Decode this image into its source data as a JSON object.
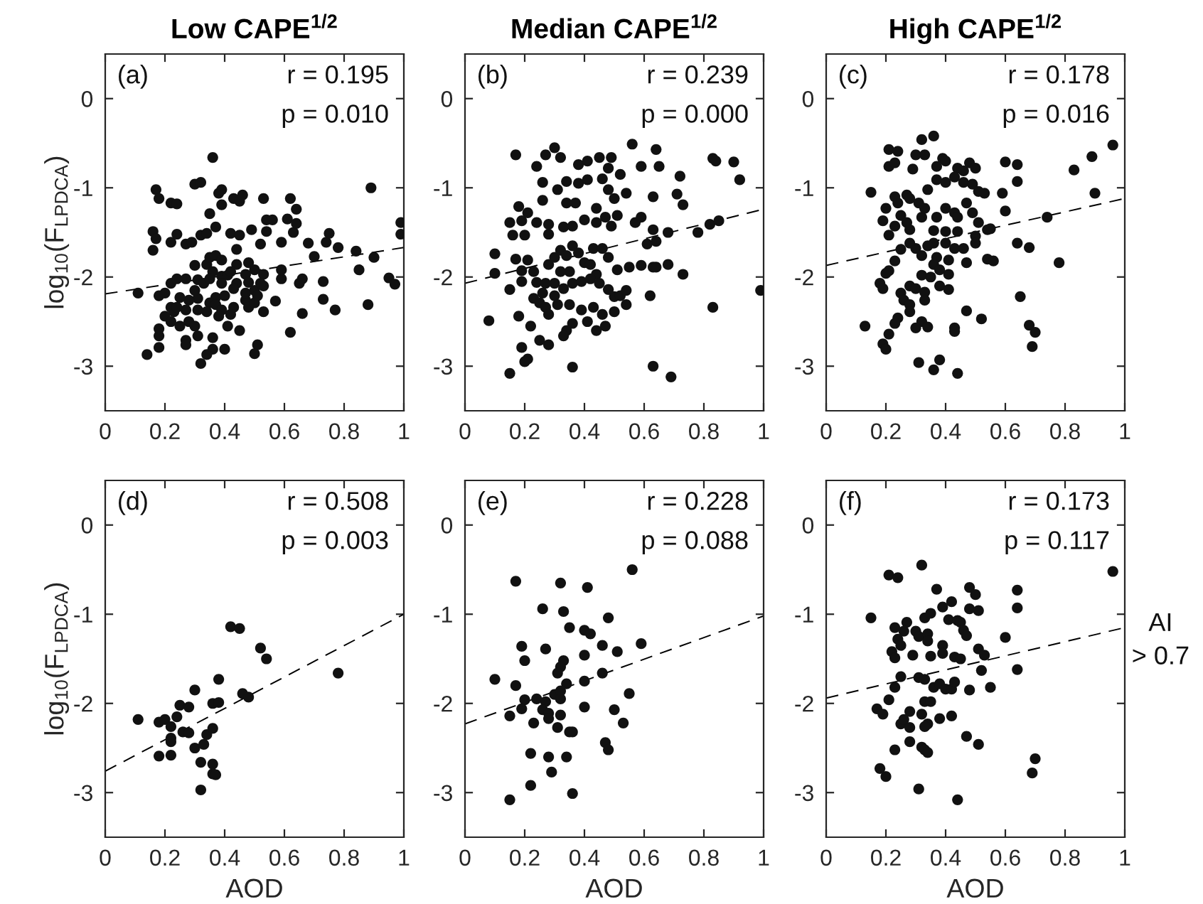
{
  "chart_data": [
    {
      "type": "scatter",
      "title": "Low CAPE$^{1/2}$",
      "ylabel": "log$_{10}$(F$_{LPDCA}$)",
      "annotations": [
        "(a)",
        "r = 0.195",
        "p = 0.010"
      ],
      "xlim": [
        0,
        1
      ],
      "ylim": [
        -3.5,
        0.5
      ],
      "xticks": [
        0,
        0.2,
        0.4,
        0.6,
        0.8,
        1
      ],
      "yticks": [
        {
          "value": -3,
          "label": "-3"
        },
        {
          "value": -2,
          "label": "-2"
        },
        {
          "value": -1,
          "label": "-1"
        },
        0
      ],
      "marker": "circle",
      "legend": false,
      "grid": false,
      "series": [
        {
          "color": "#111111",
          "x": [
            0.36,
            0.17,
            0.18,
            0.22,
            0.24,
            0.3,
            0.32,
            0.38,
            0.39,
            0.39,
            0.43,
            0.45,
            0.46,
            0.53,
            0.62,
            0.64,
            0.89,
            0.99,
            0.99,
            0.16,
            0.17,
            0.16,
            0.22,
            0.24,
            0.27,
            0.29,
            0.32,
            0.34,
            0.35,
            0.37,
            0.42,
            0.45,
            0.49,
            0.54,
            0.56,
            0.54,
            0.52,
            0.61,
            0.63,
            0.64,
            0.59,
            0.68,
            0.74,
            0.75,
            0.78,
            0.7,
            0.84,
            0.9,
            0.85,
            0.95,
            0.97,
            0.88,
            0.77,
            0.73,
            0.73,
            0.66,
            0.65,
            0.66,
            0.62,
            0.59,
            0.59,
            0.53,
            0.53,
            0.53,
            0.57,
            0.51,
            0.5,
            0.45,
            0.41,
            0.4,
            0.36,
            0.36,
            0.32,
            0.34,
            0.27,
            0.27,
            0.31,
            0.14,
            0.18,
            0.18,
            0.18,
            0.11,
            0.18,
            0.2,
            0.22,
            0.24,
            0.27,
            0.3,
            0.31,
            0.34,
            0.36,
            0.39,
            0.41,
            0.44,
            0.47,
            0.48,
            0.44,
            0.43,
            0.4,
            0.37,
            0.35,
            0.31,
            0.28,
            0.25,
            0.22,
            0.2,
            0.23,
            0.27,
            0.28,
            0.3,
            0.25,
            0.22,
            0.34,
            0.37,
            0.39,
            0.43,
            0.47,
            0.48,
            0.5,
            0.47,
            0.5,
            0.51,
            0.52,
            0.33,
            0.35,
            0.39,
            0.3,
            0.24,
            0.31,
            0.38,
            0.42,
            0.35,
            0.37,
            0.44,
            0.48,
            0.5,
            0.39,
            0.42
          ],
          "values": [
            -0.66,
            -1.02,
            -1.12,
            -1.17,
            -1.18,
            -0.96,
            -0.94,
            -1.06,
            -1.02,
            -1.19,
            -1.12,
            -1.15,
            -1.08,
            -1.12,
            -1.12,
            -1.24,
            -1.0,
            -1.39,
            -1.52,
            -1.49,
            -1.57,
            -1.7,
            -1.61,
            -1.52,
            -1.63,
            -1.61,
            -1.53,
            -1.51,
            -1.29,
            -1.44,
            -1.51,
            -1.53,
            -1.47,
            -1.36,
            -1.36,
            -1.49,
            -1.63,
            -1.35,
            -1.5,
            -1.4,
            -1.61,
            -1.62,
            -1.61,
            -1.51,
            -1.67,
            -1.77,
            -1.71,
            -1.78,
            -1.92,
            -2.01,
            -2.08,
            -2.31,
            -2.37,
            -2.05,
            -2.25,
            -2.02,
            -2.07,
            -2.41,
            -2.62,
            -2.02,
            -1.92,
            -1.97,
            -2.1,
            -2.39,
            -2.27,
            -2.76,
            -2.86,
            -2.6,
            -2.55,
            -2.81,
            -2.68,
            -2.81,
            -2.97,
            -2.87,
            -2.71,
            -2.76,
            -2.66,
            -2.87,
            -2.79,
            -2.66,
            -2.58,
            -2.18,
            -2.21,
            -2.18,
            -2.07,
            -2.02,
            -2.02,
            -1.87,
            -2.03,
            -1.86,
            -1.94,
            -1.99,
            -1.98,
            -1.86,
            -1.97,
            -2.06,
            -2.07,
            -2.13,
            -2.21,
            -2.23,
            -2.29,
            -2.24,
            -2.26,
            -2.23,
            -2.34,
            -2.44,
            -2.39,
            -2.37,
            -2.5,
            -2.55,
            -2.55,
            -2.5,
            -2.39,
            -2.31,
            -2.37,
            -2.34,
            -2.26,
            -2.34,
            -2.29,
            -2.18,
            -2.15,
            -2.21,
            -2.07,
            -2.07,
            -2.02,
            -2.07,
            -2.15,
            -2.34,
            -2.37,
            -2.44,
            -2.42,
            -1.78,
            -1.76,
            -1.69,
            -1.84,
            -1.92,
            -1.81,
            -1.94
          ]
        },
        {
          "type": "line",
          "color": "#000000",
          "line_style": "dashed",
          "marker": "none",
          "x": [
            0,
            1
          ],
          "values": [
            -2.19,
            -1.67
          ]
        }
      ]
    },
    {
      "type": "scatter",
      "title": "Median CAPE$^{1/2}$",
      "annotations": [
        "(b)",
        "r = 0.239",
        "p = 0.000"
      ],
      "xlim": [
        0,
        1
      ],
      "ylim": [
        -3.5,
        0.5
      ],
      "xticks": [
        0,
        0.2,
        0.4,
        0.6,
        0.8,
        1
      ],
      "yticks": [
        {
          "value": -3,
          "label": "-3"
        },
        {
          "value": -2,
          "label": "-2"
        },
        {
          "value": -1,
          "label": "-1"
        },
        0
      ],
      "marker": "circle",
      "legend": false,
      "grid": false,
      "series": [
        {
          "color": "#111111",
          "x": [
            0.17,
            0.3,
            0.27,
            0.32,
            0.24,
            0.38,
            0.41,
            0.45,
            0.49,
            0.48,
            0.52,
            0.56,
            0.59,
            0.64,
            0.65,
            0.83,
            0.84,
            0.9,
            0.92,
            0.72,
            0.71,
            0.73,
            0.63,
            0.54,
            0.26,
            0.26,
            0.31,
            0.34,
            0.38,
            0.41,
            0.46,
            0.48,
            0.5,
            0.37,
            0.34,
            0.18,
            0.15,
            0.19,
            0.21,
            0.16,
            0.2,
            0.1,
            0.1,
            0.24,
            0.28,
            0.28,
            0.33,
            0.36,
            0.4,
            0.44,
            0.44,
            0.47,
            0.49,
            0.51,
            0.57,
            0.59,
            0.63,
            0.64,
            0.61,
            0.68,
            0.78,
            0.82,
            0.85,
            0.17,
            0.21,
            0.19,
            0.19,
            0.15,
            0.23,
            0.24,
            0.28,
            0.3,
            0.32,
            0.34,
            0.36,
            0.38,
            0.4,
            0.43,
            0.46,
            0.48,
            0.44,
            0.42,
            0.35,
            0.32,
            0.3,
            0.27,
            0.26,
            0.3,
            0.33,
            0.36,
            0.39,
            0.42,
            0.45,
            0.48,
            0.5,
            0.52,
            0.54,
            0.55,
            0.51,
            0.59,
            0.63,
            0.64,
            0.68,
            0.73,
            0.62,
            0.83,
            0.99,
            0.23,
            0.25,
            0.27,
            0.28,
            0.31,
            0.35,
            0.39,
            0.43,
            0.46,
            0.47,
            0.44,
            0.41,
            0.36,
            0.34,
            0.33,
            0.22,
            0.18,
            0.08,
            0.25,
            0.28,
            0.19,
            0.21,
            0.2,
            0.15,
            0.36,
            0.63,
            0.69,
            0.54,
            0.5
          ],
          "values": [
            -0.63,
            -0.55,
            -0.63,
            -0.66,
            -0.76,
            -0.74,
            -0.7,
            -0.66,
            -0.66,
            -0.78,
            -0.85,
            -0.51,
            -0.76,
            -0.57,
            -0.76,
            -0.67,
            -0.7,
            -0.71,
            -0.91,
            -0.87,
            -1.07,
            -1.19,
            -1.1,
            -1.06,
            -0.94,
            -1.14,
            -1.02,
            -0.93,
            -0.95,
            -0.91,
            -0.9,
            -1.02,
            -1.12,
            -1.17,
            -1.17,
            -1.21,
            -1.39,
            -1.37,
            -1.28,
            -1.53,
            -1.53,
            -1.74,
            -1.96,
            -1.39,
            -1.41,
            -1.52,
            -1.44,
            -1.43,
            -1.36,
            -1.23,
            -1.39,
            -1.33,
            -1.43,
            -1.31,
            -1.39,
            -1.33,
            -1.47,
            -1.6,
            -1.63,
            -1.5,
            -1.5,
            -1.41,
            -1.37,
            -1.8,
            -1.81,
            -1.93,
            -2.05,
            -2.14,
            -1.94,
            -2.06,
            -1.86,
            -1.78,
            -1.7,
            -1.76,
            -1.65,
            -1.73,
            -1.84,
            -1.68,
            -1.68,
            -1.78,
            -1.97,
            -1.86,
            -1.94,
            -1.94,
            -2.07,
            -2.07,
            -2.18,
            -2.21,
            -2.13,
            -2.07,
            -2.05,
            -2.02,
            -2.07,
            -2.14,
            -2.22,
            -2.21,
            -2.15,
            -1.89,
            -1.92,
            -1.87,
            -1.89,
            -1.89,
            -1.86,
            -1.97,
            -2.21,
            -2.34,
            -2.15,
            -2.24,
            -2.29,
            -2.34,
            -2.42,
            -2.31,
            -2.31,
            -2.37,
            -2.34,
            -2.42,
            -2.55,
            -2.6,
            -2.5,
            -2.52,
            -2.6,
            -2.66,
            -2.55,
            -2.44,
            -2.49,
            -2.71,
            -2.76,
            -2.79,
            -2.92,
            -2.95,
            -3.08,
            -3.01,
            -3.0,
            -3.12,
            -2.31,
            -2.39
          ]
        },
        {
          "type": "line",
          "color": "#000000",
          "line_style": "dashed",
          "marker": "none",
          "x": [
            0,
            1
          ],
          "values": [
            -2.07,
            -1.24
          ]
        }
      ]
    },
    {
      "type": "scatter",
      "title": "High CAPE$^{1/2}$",
      "annotations": [
        "(c)",
        "r = 0.178",
        "p = 0.016"
      ],
      "xlim": [
        0,
        1
      ],
      "ylim": [
        -3.5,
        0.5
      ],
      "xticks": [
        0,
        0.2,
        0.4,
        0.6,
        0.8,
        1
      ],
      "yticks": [
        {
          "value": -3,
          "label": "-3"
        },
        {
          "value": -2,
          "label": "-2"
        },
        {
          "value": -1,
          "label": "-1"
        },
        0
      ],
      "marker": "circle",
      "legend": false,
      "grid": false,
      "series": [
        {
          "color": "#111111",
          "x": [
            0.36,
            0.32,
            0.21,
            0.24,
            0.3,
            0.33,
            0.21,
            0.23,
            0.29,
            0.37,
            0.39,
            0.4,
            0.44,
            0.46,
            0.48,
            0.5,
            0.6,
            0.64,
            0.64,
            0.83,
            0.89,
            0.96,
            0.9,
            0.15,
            0.59,
            0.6,
            0.74,
            0.37,
            0.4,
            0.43,
            0.46,
            0.49,
            0.51,
            0.53,
            0.34,
            0.23,
            0.27,
            0.28,
            0.31,
            0.2,
            0.24,
            0.25,
            0.19,
            0.21,
            0.23,
            0.27,
            0.28,
            0.32,
            0.33,
            0.37,
            0.4,
            0.43,
            0.44,
            0.47,
            0.49,
            0.51,
            0.54,
            0.55,
            0.5,
            0.5,
            0.36,
            0.4,
            0.44,
            0.4,
            0.36,
            0.34,
            0.3,
            0.28,
            0.25,
            0.32,
            0.37,
            0.41,
            0.43,
            0.46,
            0.47,
            0.54,
            0.56,
            0.64,
            0.68,
            0.78,
            0.23,
            0.21,
            0.2,
            0.36,
            0.38,
            0.41,
            0.32,
            0.35,
            0.18,
            0.19,
            0.38,
            0.41,
            0.28,
            0.3,
            0.33,
            0.25,
            0.26,
            0.28,
            0.33,
            0.28,
            0.24,
            0.23,
            0.32,
            0.34,
            0.3,
            0.43,
            0.43,
            0.47,
            0.52,
            0.65,
            0.68,
            0.7,
            0.69,
            0.13,
            0.21,
            0.19,
            0.2,
            0.31,
            0.38,
            0.36,
            0.44
          ],
          "values": [
            -0.42,
            -0.46,
            -0.57,
            -0.59,
            -0.63,
            -0.63,
            -0.76,
            -0.72,
            -0.79,
            -0.76,
            -0.67,
            -0.7,
            -0.78,
            -0.81,
            -0.72,
            -0.78,
            -0.71,
            -0.74,
            -0.93,
            -0.8,
            -0.65,
            -0.52,
            -1.06,
            -1.05,
            -1.06,
            -1.26,
            -1.33,
            -0.91,
            -0.94,
            -0.88,
            -0.94,
            -0.96,
            -1.04,
            -1.06,
            -1.02,
            -1.1,
            -1.08,
            -1.12,
            -1.17,
            -1.23,
            -1.17,
            -1.31,
            -1.37,
            -1.53,
            -1.43,
            -1.39,
            -1.47,
            -1.33,
            -1.23,
            -1.33,
            -1.23,
            -1.28,
            -1.33,
            -1.17,
            -1.28,
            -1.39,
            -1.47,
            -1.46,
            -1.54,
            -1.62,
            -1.48,
            -1.49,
            -1.49,
            -1.62,
            -1.62,
            -1.65,
            -1.68,
            -1.62,
            -1.69,
            -1.76,
            -1.78,
            -1.81,
            -1.68,
            -1.68,
            -1.84,
            -1.8,
            -1.82,
            -1.62,
            -1.67,
            -1.84,
            -1.82,
            -1.93,
            -1.96,
            -1.86,
            -1.92,
            -1.97,
            -1.98,
            -2.0,
            -2.07,
            -2.13,
            -2.1,
            -2.14,
            -2.1,
            -2.13,
            -2.17,
            -2.18,
            -2.26,
            -2.31,
            -2.26,
            -2.39,
            -2.46,
            -2.52,
            -2.5,
            -2.56,
            -2.57,
            -2.57,
            -2.61,
            -2.38,
            -2.47,
            -2.22,
            -2.54,
            -2.62,
            -2.78,
            -2.55,
            -2.64,
            -2.75,
            -2.81,
            -2.96,
            -2.93,
            -3.04,
            -3.08
          ]
        },
        {
          "type": "line",
          "color": "#000000",
          "line_style": "dashed",
          "marker": "none",
          "x": [
            0,
            1
          ],
          "values": [
            -1.87,
            -1.12
          ]
        }
      ]
    },
    {
      "type": "scatter",
      "xlabel": "AOD",
      "ylabel": "log$_{10}$(F$_{LPDCA}$)",
      "annotations": [
        "(d)",
        "r = 0.508",
        "p = 0.003"
      ],
      "xlim": [
        0,
        1
      ],
      "ylim": [
        -3.5,
        0.5
      ],
      "xticks": [
        0,
        0.2,
        0.4,
        0.6,
        0.8,
        1
      ],
      "yticks": [
        {
          "value": -3,
          "label": "-3"
        },
        {
          "value": -2,
          "label": "-2"
        },
        {
          "value": -1,
          "label": "-1"
        },
        0
      ],
      "marker": "circle",
      "legend": false,
      "grid": false,
      "series": [
        {
          "color": "#111111",
          "x": [
            0.11,
            0.18,
            0.2,
            0.22,
            0.24,
            0.25,
            0.28,
            0.3,
            0.18,
            0.22,
            0.22,
            0.22,
            0.26,
            0.28,
            0.3,
            0.32,
            0.32,
            0.33,
            0.34,
            0.36,
            0.36,
            0.36,
            0.37,
            0.36,
            0.38,
            0.38,
            0.42,
            0.45,
            0.52,
            0.54,
            0.46,
            0.48,
            0.78
          ],
          "values": [
            -2.18,
            -2.21,
            -2.18,
            -2.26,
            -2.15,
            -2.02,
            -2.04,
            -1.85,
            -2.59,
            -2.58,
            -2.39,
            -2.43,
            -2.32,
            -2.33,
            -2.5,
            -2.66,
            -2.97,
            -2.46,
            -2.35,
            -2.28,
            -2.68,
            -2.79,
            -2.8,
            -2.0,
            -1.99,
            -1.73,
            -1.14,
            -1.16,
            -1.38,
            -1.5,
            -1.89,
            -1.93,
            -1.66
          ]
        },
        {
          "type": "line",
          "color": "#000000",
          "line_style": "dashed",
          "marker": "none",
          "x": [
            0,
            1
          ],
          "values": [
            -2.76,
            -1.0
          ]
        }
      ]
    },
    {
      "type": "scatter",
      "xlabel": "AOD",
      "annotations": [
        "(e)",
        "r = 0.228",
        "p = 0.088"
      ],
      "xlim": [
        0,
        1
      ],
      "ylim": [
        -3.5,
        0.5
      ],
      "xticks": [
        0,
        0.2,
        0.4,
        0.6,
        0.8,
        1
      ],
      "yticks": [
        {
          "value": -3,
          "label": "-3"
        },
        {
          "value": -2,
          "label": "-2"
        },
        {
          "value": -1,
          "label": "-1"
        },
        0
      ],
      "marker": "circle",
      "legend": false,
      "grid": false,
      "series": [
        {
          "color": "#111111",
          "x": [
            0.17,
            0.32,
            0.41,
            0.56,
            0.26,
            0.33,
            0.48,
            0.35,
            0.4,
            0.42,
            0.19,
            0.27,
            0.46,
            0.51,
            0.59,
            0.2,
            0.33,
            0.4,
            0.1,
            0.17,
            0.32,
            0.31,
            0.34,
            0.4,
            0.46,
            0.2,
            0.24,
            0.19,
            0.15,
            0.27,
            0.3,
            0.32,
            0.32,
            0.26,
            0.28,
            0.28,
            0.23,
            0.32,
            0.31,
            0.35,
            0.36,
            0.4,
            0.55,
            0.5,
            0.53,
            0.47,
            0.48,
            0.22,
            0.28,
            0.34,
            0.29,
            0.22,
            0.36,
            0.15
          ],
          "values": [
            -0.63,
            -0.65,
            -0.7,
            -0.5,
            -0.94,
            -0.97,
            -1.04,
            -1.15,
            -1.18,
            -1.22,
            -1.36,
            -1.39,
            -1.35,
            -1.42,
            -1.33,
            -1.52,
            -1.52,
            -1.46,
            -1.73,
            -1.8,
            -1.59,
            -1.66,
            -1.78,
            -1.75,
            -1.66,
            -1.96,
            -1.95,
            -2.06,
            -2.14,
            -1.98,
            -1.9,
            -1.86,
            -1.95,
            -2.07,
            -2.11,
            -2.17,
            -2.22,
            -2.13,
            -2.27,
            -2.32,
            -2.32,
            -2.04,
            -1.89,
            -2.07,
            -2.22,
            -2.44,
            -2.52,
            -2.56,
            -2.6,
            -2.6,
            -2.77,
            -2.92,
            -3.01,
            -3.08
          ]
        },
        {
          "type": "line",
          "color": "#000000",
          "line_style": "dashed",
          "marker": "none",
          "x": [
            0,
            1
          ],
          "values": [
            -2.23,
            -1.02
          ]
        }
      ]
    },
    {
      "type": "scatter",
      "xlabel": "AOD",
      "annotations": [
        "(f)",
        "r = 0.173",
        "p = 0.117",
        "AI\n> 0.7"
      ],
      "xlim": [
        0,
        1
      ],
      "ylim": [
        -3.5,
        0.5
      ],
      "xticks": [
        0,
        0.2,
        0.4,
        0.6,
        0.8,
        1
      ],
      "yticks": [
        {
          "value": -3,
          "label": "-3"
        },
        {
          "value": -2,
          "label": "-2"
        },
        {
          "value": -1,
          "label": "-1"
        },
        0
      ],
      "marker": "circle",
      "legend": false,
      "grid": false,
      "series": [
        {
          "color": "#111111",
          "x": [
            0.32,
            0.21,
            0.24,
            0.96,
            0.37,
            0.48,
            0.5,
            0.64,
            0.42,
            0.39,
            0.48,
            0.51,
            0.64,
            0.15,
            0.33,
            0.35,
            0.27,
            0.23,
            0.26,
            0.41,
            0.44,
            0.45,
            0.46,
            0.47,
            0.3,
            0.31,
            0.34,
            0.34,
            0.24,
            0.25,
            0.39,
            0.6,
            0.22,
            0.23,
            0.29,
            0.35,
            0.39,
            0.43,
            0.45,
            0.51,
            0.53,
            0.52,
            0.64,
            0.25,
            0.31,
            0.33,
            0.23,
            0.36,
            0.38,
            0.4,
            0.42,
            0.43,
            0.48,
            0.55,
            0.21,
            0.33,
            0.35,
            0.17,
            0.19,
            0.28,
            0.32,
            0.38,
            0.42,
            0.25,
            0.26,
            0.28,
            0.34,
            0.33,
            0.47,
            0.51,
            0.28,
            0.23,
            0.32,
            0.33,
            0.34,
            0.18,
            0.2,
            0.31,
            0.44,
            0.7,
            0.69
          ],
          "values": [
            -0.45,
            -0.56,
            -0.59,
            -0.52,
            -0.72,
            -0.7,
            -0.78,
            -0.73,
            -0.86,
            -0.92,
            -0.94,
            -0.96,
            -0.93,
            -1.04,
            -1.04,
            -0.99,
            -1.09,
            -1.15,
            -1.19,
            -1.06,
            -1.07,
            -1.09,
            -1.18,
            -1.24,
            -1.19,
            -1.25,
            -1.22,
            -1.3,
            -1.28,
            -1.35,
            -1.35,
            -1.26,
            -1.42,
            -1.49,
            -1.46,
            -1.47,
            -1.44,
            -1.48,
            -1.5,
            -1.39,
            -1.46,
            -1.63,
            -1.62,
            -1.7,
            -1.71,
            -1.73,
            -1.82,
            -1.82,
            -1.78,
            -1.84,
            -1.84,
            -1.76,
            -1.85,
            -1.82,
            -1.96,
            -1.98,
            -1.98,
            -2.06,
            -2.12,
            -2.09,
            -2.12,
            -2.17,
            -2.14,
            -2.23,
            -2.18,
            -2.27,
            -2.23,
            -2.26,
            -2.37,
            -2.46,
            -2.43,
            -2.52,
            -2.49,
            -2.52,
            -2.55,
            -2.73,
            -2.82,
            -2.96,
            -3.08,
            -2.62,
            -2.78
          ]
        },
        {
          "type": "line",
          "color": "#000000",
          "line_style": "dashed",
          "marker": "none",
          "x": [
            0,
            1
          ],
          "values": [
            -1.94,
            -1.15
          ]
        }
      ]
    }
  ]
}
